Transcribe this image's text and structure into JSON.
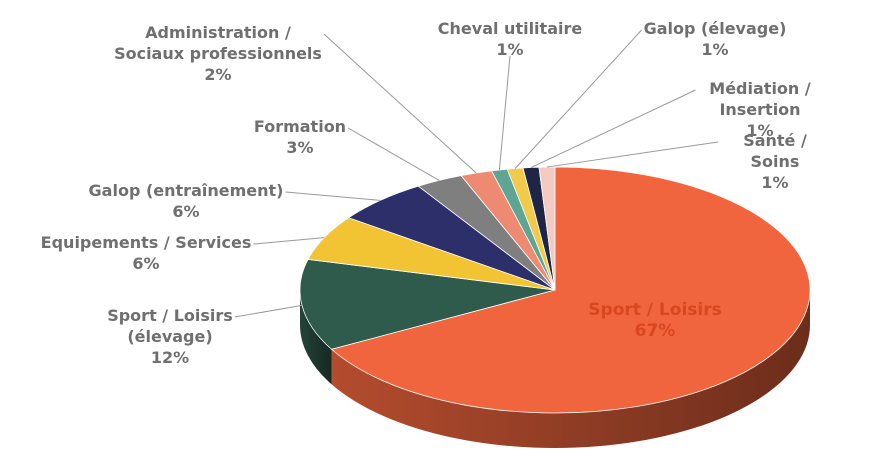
{
  "chart_data": {
    "type": "pie",
    "categories": [
      "Sport / Loisirs",
      "Sport / Loisirs\n(élevage)",
      "Equipements / Services",
      "Galop (entraînement)",
      "Formation",
      "Administration /\nSociaux professionnels",
      "Cheval utilitaire",
      "Galop (élevage)",
      "Médiation / Insertion",
      "Santé / Soins"
    ],
    "values": [
      67,
      12,
      6,
      6,
      3,
      2,
      1,
      1,
      1,
      1
    ],
    "value_labels": [
      "67%",
      "12%",
      "6%",
      "6%",
      "3%",
      "2%",
      "1%",
      "1%",
      "1%",
      "1%"
    ],
    "colors": [
      "#f0653d",
      "#2f5b4c",
      "#f2c333",
      "#2d2f6b",
      "#7f7f7f",
      "#ef8a72",
      "#5ea593",
      "#f1ca4c",
      "#1f2545",
      "#f4cbc2"
    ]
  }
}
